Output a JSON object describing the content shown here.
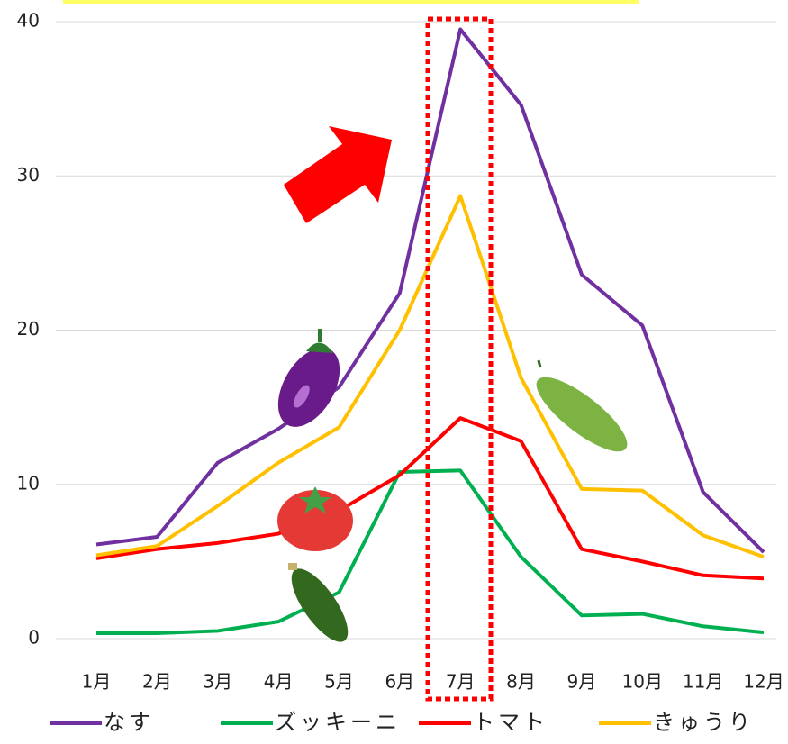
{
  "chart_data": {
    "type": "line",
    "categories": [
      "1月",
      "2月",
      "3月",
      "4月",
      "5月",
      "6月",
      "7月",
      "8月",
      "9月",
      "10月",
      "11月",
      "12月"
    ],
    "series": [
      {
        "name": "なす",
        "color": "#7030a0",
        "values": [
          6.1,
          6.6,
          11.4,
          13.6,
          16.3,
          22.4,
          39.5,
          34.6,
          23.6,
          20.3,
          9.5,
          5.6
        ]
      },
      {
        "name": "ズッキーニ",
        "color": "#00b050",
        "values": [
          0.35,
          0.35,
          0.5,
          1.1,
          3.0,
          10.8,
          10.9,
          5.3,
          1.5,
          1.6,
          0.8,
          0.4
        ]
      },
      {
        "name": "トマト",
        "color": "#ff0000",
        "values": [
          5.2,
          5.8,
          6.2,
          6.8,
          8.3,
          10.6,
          14.3,
          12.8,
          5.8,
          5.0,
          4.1,
          3.9
        ]
      },
      {
        "name": "きゅうり",
        "color": "#ffc000",
        "values": [
          5.4,
          6.0,
          8.6,
          11.4,
          13.7,
          20.0,
          28.7,
          16.9,
          9.7,
          9.6,
          6.7,
          5.3
        ]
      }
    ],
    "ylim": [
      0,
      40
    ],
    "yticks": [
      0,
      10,
      20,
      30,
      40
    ],
    "grid": true
  }
}
